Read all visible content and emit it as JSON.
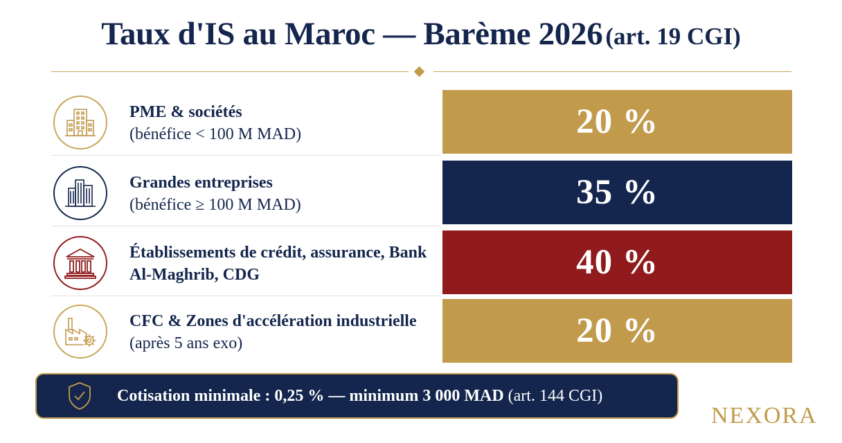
{
  "header": {
    "title": "Taux d'IS au Maroc — Barème 2026",
    "subtitle": "(art. 19 CGI)"
  },
  "rows": [
    {
      "icon": "office-building-icon",
      "label_bold": "PME & sociétés",
      "label_regular": "(bénéfice < 100 M MAD)",
      "rate": "20 %",
      "color": "#c29a4c"
    },
    {
      "icon": "skyscraper-icon",
      "label_bold": "Grandes entreprises",
      "label_regular": "(bénéfice ≥ 100 M MAD)",
      "rate": "35 %",
      "color": "#14264d"
    },
    {
      "icon": "bank-icon",
      "label_bold": "Établissements de crédit, assurance, Bank Al-Maghrib, CDG",
      "label_regular": "",
      "rate": "40 %",
      "color": "#901a1c"
    },
    {
      "icon": "factory-gear-icon",
      "label_bold": "CFC & Zones d'accélération industrielle",
      "label_regular": "(après 5 ans exo)",
      "rate": "20 %",
      "color": "#c29a4c"
    }
  ],
  "footer": {
    "icon": "shield-check-icon",
    "text_bold": "Cotisation minimale : 0,25 % — minimum 3 000 MAD",
    "text_regular": "(art. 144 CGI)"
  },
  "brand": "NEXORA",
  "colors": {
    "navy": "#14264d",
    "gold": "#c29a4c",
    "red": "#901a1c"
  }
}
